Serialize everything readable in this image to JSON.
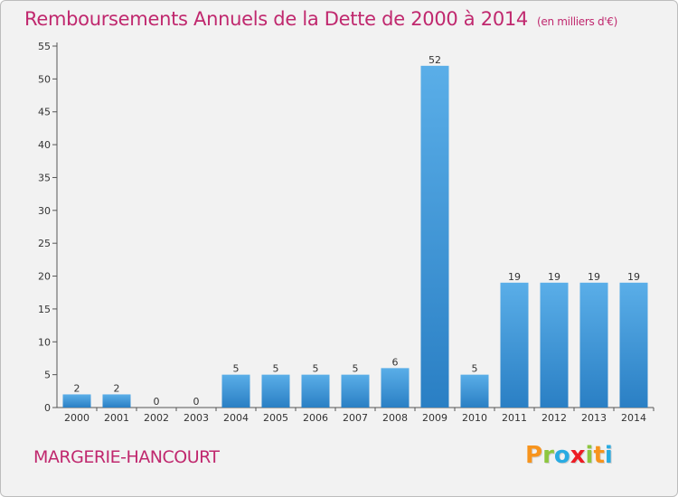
{
  "chart_data": {
    "type": "bar",
    "title": "Remboursements Annuels de la Dette de 2000 à 2014",
    "unit": "(en milliers d'€)",
    "categories": [
      "2000",
      "2001",
      "2002",
      "2003",
      "2004",
      "2005",
      "2006",
      "2007",
      "2008",
      "2009",
      "2010",
      "2011",
      "2012",
      "2013",
      "2014"
    ],
    "values": [
      2,
      2,
      0,
      0,
      5,
      5,
      5,
      5,
      6,
      52,
      5,
      19,
      19,
      19,
      19
    ],
    "data_labels": [
      "2",
      "2",
      "0",
      "0",
      "5",
      "5",
      "5",
      "5",
      "6",
      "52",
      "5",
      "19",
      "19",
      "19",
      "19"
    ],
    "ylim": [
      0,
      55
    ],
    "yticks": [
      0,
      5,
      10,
      15,
      20,
      25,
      30,
      35,
      40,
      45,
      50,
      55
    ],
    "grid": false,
    "bar_color": "#3d95d8",
    "xlabel": "",
    "ylabel": ""
  },
  "commune": "MARGERIE-HANCOURT",
  "logo": {
    "letters": [
      {
        "ch": "P",
        "color": "#f7941d"
      },
      {
        "ch": "r",
        "color": "#8dc63f"
      },
      {
        "ch": "o",
        "color": "#29abe2"
      },
      {
        "ch": "x",
        "color": "#ed1c24"
      },
      {
        "ch": "i",
        "color": "#8dc63f"
      },
      {
        "ch": "t",
        "color": "#f7941d"
      },
      {
        "ch": "i",
        "color": "#29abe2"
      }
    ]
  },
  "colors": {
    "accent": "#c0286e",
    "background": "#f2f2f2"
  }
}
